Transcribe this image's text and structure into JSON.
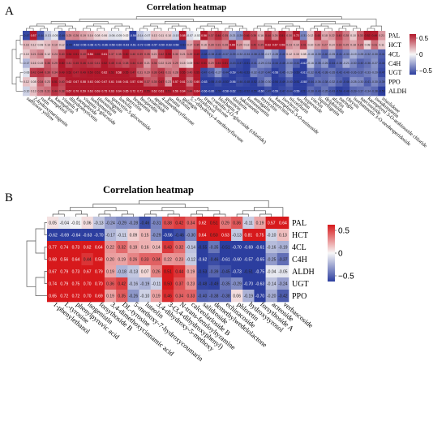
{
  "chart_data": [
    {
      "panel_label": "A",
      "type": "heatmap",
      "title": "Correlation heatmap",
      "rows": [
        "PAL",
        "HCT",
        "4CL",
        "C4H",
        "UGT",
        "PPO",
        "ALDH"
      ],
      "columns": [
        "safflower yellow",
        "2-hydroxynaringenin",
        "rutin",
        "kaempferol",
        "kaempferin",
        "vitamin A",
        "dihydromyricetin",
        "kaempferide",
        "vitamin 3-glucoside",
        "isorhamnetin",
        "pinostrobin",
        "naringenin",
        "quercetin-3-glucuronide",
        "luteolin",
        "quercetin",
        "hesperetin",
        "hesperidin",
        "cynaroside",
        "apigenin",
        "4-dimethoxyflavone",
        "prunin",
        "taxifolin",
        "galangin",
        "5,7-dihydroxy-4-methoxyflavone",
        "eriodictyol",
        "trans-chalcone",
        "cyanidin-3-O-glucoside (chloride)",
        "biochanin A",
        "genistein",
        "daidzein",
        "sakuranetin",
        "formononetin",
        "astragalin",
        "myricetin",
        "isoquercitrin",
        "kaempferol-3-O-rutinoside",
        "isovitexin",
        "nicotiflorin",
        "orientin",
        "hyperoside",
        "vitexin",
        "liquiritigenin",
        "delphinidin",
        "afzelin",
        "naringin",
        "chrysin",
        "isorhamnetin 3-O-neohesperidoside",
        "narcissoside",
        "kaempferol 3-O-arabinoside chloride",
        "isosakuranetin",
        "irisolidone"
      ],
      "color_range": [
        -0.5,
        0.5
      ],
      "colorbar_ticks": [
        "0.5",
        "0",
        "−0.5"
      ],
      "colors": {
        "high": "#b2182b",
        "mid": "#f7f7f7",
        "low": "#2c3e9f"
      },
      "values": [
        [
          -0.47,
          0.57,
          -0.44,
          -0.13,
          -0.05,
          -0.46,
          0.25,
          0.26,
          0.19,
          0.16,
          0.08,
          0.06,
          -0.06,
          -0.05,
          0.02,
          -0.56,
          -0.14,
          -0.07,
          0.13,
          0.11,
          0.1,
          -0.1,
          0.58,
          -0.07,
          -0.02,
          0.56,
          0.37,
          0.46,
          0.35,
          -0.21,
          -0.29,
          0.46,
          0.39,
          0.16,
          0.44,
          0.26,
          0.51,
          0.3,
          0.72,
          -0.31,
          0.12,
          0.45,
          0.18,
          0.22,
          0.4,
          0.28,
          0.1,
          0.33,
          0.52,
          0.49,
          0.21
        ],
        [
          0.16,
          0.12,
          0.08,
          0.13,
          0.19,
          0.12,
          -0.55,
          -0.62,
          -0.56,
          -0.68,
          -0.71,
          -0.66,
          -0.58,
          -0.6,
          -0.63,
          -0.61,
          -0.72,
          -0.65,
          -0.57,
          -0.59,
          -0.63,
          -0.58,
          -0.53,
          0.17,
          0.35,
          0.16,
          0.28,
          0.31,
          0.26,
          0.66,
          0.24,
          0.13,
          0.42,
          0.35,
          0.63,
          0.67,
          0.58,
          0.23,
          0.19,
          0.41,
          0.1,
          0.22,
          0.27,
          0.14,
          0.33,
          0.25,
          0.18,
          0.29,
          0.08,
          0.31,
          0.11
        ],
        [
          0.1,
          0.21,
          0.26,
          0.12,
          0.24,
          0.4,
          0.54,
          0.51,
          0.4,
          0.56,
          0.55,
          0.61,
          0.37,
          0.35,
          0.5,
          0.4,
          0.39,
          0.35,
          0.21,
          0.42,
          0.5,
          0.3,
          0.21,
          0.29,
          0.49,
          -0.48,
          -0.38,
          -0.43,
          -0.37,
          -0.39,
          -0.32,
          -0.34,
          -0.38,
          -0.39,
          -0.17,
          -0.28,
          -0.43,
          0.12,
          0.15,
          0.08,
          -0.18,
          -0.3,
          -0.4,
          -0.25,
          -0.41,
          -0.33,
          -0.19,
          -0.28,
          -0.32,
          -0.3,
          -0.41
        ],
        [
          -0.17,
          0.16,
          0.15,
          0.36,
          0.29,
          0.5,
          0.41,
          0.45,
          0.46,
          0.43,
          0.41,
          0.52,
          0.45,
          0.41,
          0.38,
          0.44,
          0.4,
          0.21,
          0.36,
          0.22,
          0.24,
          0.29,
          0.15,
          0.09,
          0.52,
          0.51,
          0.29,
          0.46,
          0.51,
          -0.43,
          -0.47,
          -0.51,
          -0.41,
          -0.29,
          -0.31,
          -0.44,
          -0.45,
          -0.3,
          -0.41,
          -0.62,
          -0.16,
          -0.35,
          -0.26,
          -0.44,
          -0.38,
          -0.21,
          -0.3,
          -0.4,
          -0.36,
          -0.27,
          -0.44
        ],
        [
          -0.06,
          0.42,
          0.44,
          0.39,
          0.34,
          0.49,
          0.52,
          0.47,
          0.49,
          0.5,
          0.51,
          0.62,
          0.52,
          0.58,
          0.55,
          0.47,
          0.31,
          0.29,
          0.38,
          0.43,
          0.31,
          0.28,
          0.55,
          0.4,
          0.55,
          -0.47,
          -0.41,
          -0.27,
          -0.44,
          -0.59,
          -0.48,
          -0.53,
          -0.32,
          -0.37,
          -0.4,
          -0.58,
          -0.45,
          -0.29,
          -0.5,
          -0.61,
          -0.32,
          -0.41,
          -0.38,
          -0.35,
          -0.42,
          -0.4,
          -0.36,
          -0.37,
          -0.33,
          -0.29,
          -0.47
        ],
        [
          0.12,
          0.08,
          0.34,
          0.23,
          0.51,
          0.4,
          0.62,
          0.67,
          0.58,
          0.63,
          0.6,
          0.67,
          0.61,
          0.66,
          0.61,
          0.57,
          0.56,
          0.37,
          0.35,
          0.47,
          0.23,
          0.57,
          0.61,
          0.3,
          0.6,
          -0.63,
          -0.55,
          -0.45,
          -0.53,
          -0.56,
          -0.46,
          -0.48,
          -0.52,
          -0.39,
          -0.3,
          -0.54,
          -0.49,
          -0.4,
          -0.51,
          -0.58,
          -0.44,
          -0.36,
          -0.38,
          -0.32,
          -0.4,
          -0.46,
          -0.28,
          -0.3,
          -0.41,
          -0.3,
          -0.39
        ],
        [
          -0.1,
          0.13,
          0.28,
          0.31,
          0.44,
          0.38,
          0.67,
          0.7,
          0.59,
          0.63,
          0.69,
          0.75,
          0.63,
          0.64,
          0.65,
          0.72,
          0.71,
          0.55,
          0.62,
          0.61,
          0.51,
          0.56,
          0.64,
          0.44,
          0.64,
          -0.66,
          -0.6,
          -0.55,
          -0.58,
          -0.62,
          -0.51,
          -0.52,
          -0.55,
          -0.6,
          -0.45,
          -0.59,
          -0.47,
          -0.44,
          -0.56,
          -0.51,
          -0.38,
          -0.43,
          -0.35,
          -0.43,
          -0.54,
          -0.48,
          -0.39,
          -0.37,
          -0.34,
          -0.38,
          -0.5
        ]
      ]
    },
    {
      "panel_label": "B",
      "type": "heatmap",
      "title": "Correlation heatmap",
      "rows": [
        "PAL",
        "HCT",
        "4CL",
        "C4H",
        "ALDH",
        "UGT",
        "PPO"
      ],
      "columns": [
        "1-phenylethanol",
        "L-tyrosine",
        "phenylpyruvic acid",
        "isogenistin",
        "forsythoside B",
        "3,4-dimethoxycinnamic acid",
        "DL-tyrosine",
        "5-methoxy-7-hydroxycoumarin",
        "luteolin",
        "3,4-dihydroxy-5-methoxy",
        "3-(3,4-dihydroxyphenyl)",
        "N-trans-feruloyltyramine",
        "calceolarioside B",
        "salidroside",
        "demethylwedelolactone",
        "echinacoside",
        "phloretin",
        "hydroxytyrosol",
        "forsythoside A",
        "acteoside",
        "verbascoside"
      ],
      "color_range": [
        -0.5,
        0.5
      ],
      "colorbar_ticks": [
        "0.5",
        "0",
        "−0.5"
      ],
      "colors": {
        "high": "#d7191c",
        "mid": "#f7f7f7",
        "low": "#2c3e9f"
      },
      "values": [
        [
          0.05,
          -0.04,
          -0.01,
          0.06,
          -0.13,
          -0.24,
          -0.29,
          -0.28,
          -0.46,
          -0.31,
          0.38,
          0.42,
          0.34,
          0.62,
          0.51,
          0.29,
          0.36,
          -0.11,
          0.19,
          0.57,
          0.64
        ],
        [
          -0.62,
          -0.69,
          -0.64,
          -0.63,
          -0.7,
          -0.17,
          -0.11,
          0.09,
          0.15,
          -0.29,
          -0.56,
          -0.46,
          -0.3,
          0.64,
          0.5,
          0.63,
          -0.13,
          0.81,
          0.75,
          -0.1,
          0.13
        ],
        [
          0.77,
          0.74,
          0.73,
          0.62,
          0.64,
          0.22,
          0.32,
          0.19,
          0.16,
          0.14,
          0.43,
          0.32,
          -0.14,
          -0.55,
          -0.35,
          -0.51,
          -0.7,
          -0.69,
          -0.61,
          -0.16,
          -0.19
        ],
        [
          0.68,
          0.56,
          0.64,
          0.44,
          0.58,
          0.2,
          0.19,
          0.26,
          0.33,
          0.34,
          0.22,
          0.23,
          -0.12,
          -0.62,
          -0.46,
          -0.61,
          -0.6,
          -0.57,
          -0.65,
          -0.25,
          -0.37
        ],
        [
          0.67,
          0.79,
          0.73,
          0.67,
          0.79,
          0.19,
          -0.18,
          -0.13,
          0.07,
          0.26,
          0.51,
          0.44,
          0.19,
          -0.53,
          -0.39,
          -0.45,
          -0.73,
          -0.51,
          -0.75,
          -0.04,
          -0.05
        ],
        [
          0.74,
          0.79,
          0.75,
          0.7,
          0.7,
          0.36,
          0.42,
          -0.16,
          -0.19,
          -0.11,
          0.5,
          0.37,
          0.23,
          -0.48,
          -0.49,
          -0.35,
          -0.29,
          -0.7,
          -0.63,
          -0.14,
          -0.24
        ],
        [
          0.65,
          0.72,
          0.72,
          0.7,
          0.69,
          0.19,
          0.35,
          -0.26,
          -0.1,
          0.19,
          0.46,
          0.34,
          0.33,
          -0.4,
          -0.38,
          -0.38,
          0.06,
          -0.19,
          -0.7,
          -0.2,
          -0.42
        ]
      ]
    }
  ]
}
